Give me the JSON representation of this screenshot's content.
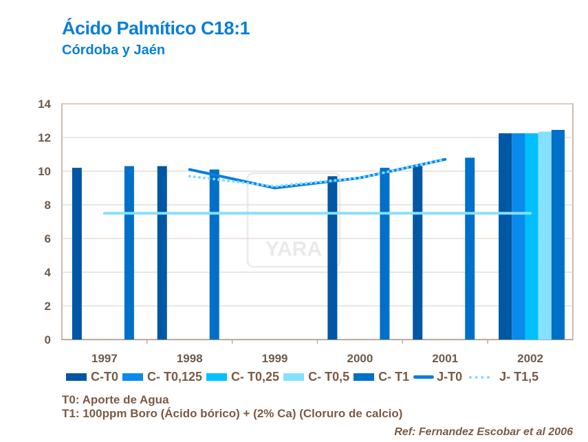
{
  "chart_data": {
    "type": "bar",
    "title": "Ácido Palmítico C18:1",
    "subtitle": "Córdoba y Jaén",
    "xlabel": "",
    "ylabel": "",
    "ylim": [
      0,
      14
    ],
    "yticks": [
      "0",
      "2",
      "4",
      "6",
      "8",
      "10",
      "12",
      "14"
    ],
    "categories": [
      "1997",
      "1998",
      "1999",
      "2000",
      "2001",
      "2002"
    ],
    "grid": true,
    "legend_position": "bottom",
    "series": [
      {
        "name": "C-T0",
        "kind": "bar",
        "color": "#0057a3",
        "values": [
          10.2,
          10.3,
          null,
          9.7,
          10.3,
          12.25
        ]
      },
      {
        "name": "C- T0,125",
        "kind": "bar",
        "color": "#0a8aeb",
        "values": [
          null,
          null,
          null,
          null,
          null,
          12.25
        ]
      },
      {
        "name": "C- T0,25",
        "kind": "bar",
        "color": "#00c0ff",
        "values": [
          null,
          null,
          null,
          null,
          null,
          12.25
        ]
      },
      {
        "name": "C- T0,5",
        "kind": "bar",
        "color": "#86e0ff",
        "values": [
          null,
          null,
          null,
          null,
          null,
          12.35
        ]
      },
      {
        "name": "C- T1",
        "kind": "bar",
        "color": "#0070c8",
        "values": [
          10.3,
          10.1,
          null,
          10.2,
          10.8,
          12.45
        ]
      },
      {
        "name": "J-T0",
        "kind": "line",
        "color": "#0a7fe0",
        "values": [
          null,
          10.1,
          9.0,
          9.6,
          10.7,
          null
        ]
      },
      {
        "name": "J- T1,5",
        "kind": "dotted-line",
        "color": "#7fdcff",
        "values": [
          null,
          9.7,
          9.1,
          9.6,
          10.7,
          null
        ]
      }
    ],
    "reference_line": {
      "value": 7.5,
      "color": "#86e0ff",
      "from": "1997",
      "to": "2002"
    }
  },
  "notes": {
    "t0": "T0: Aporte de Agua",
    "t1": "T1: 100ppm Boro (Ácido bórico) + (2% Ca) (Cloruro de calcio)",
    "ref": "Ref: Fernandez Escobar et al 2006"
  },
  "watermark": "YARA"
}
